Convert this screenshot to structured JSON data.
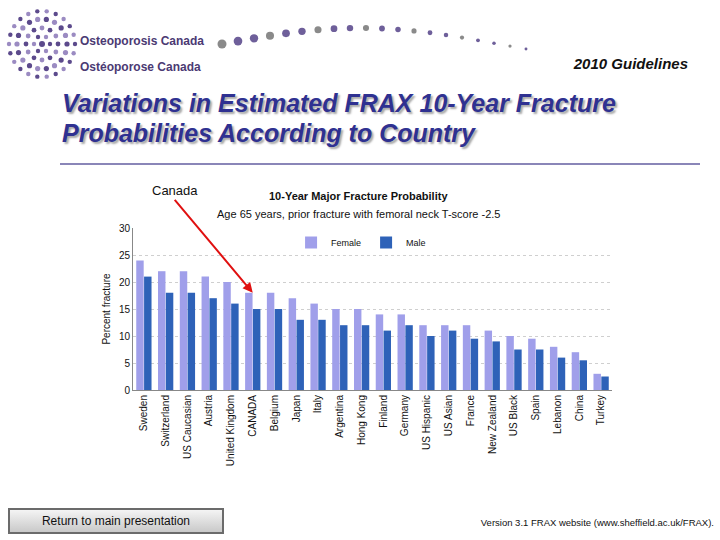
{
  "header": {
    "logo_lines": [
      "Osteoporosis Canada",
      "Ostéoporose Canada"
    ],
    "tag": "2010 Guidelines",
    "title": "Variations in Estimated FRAX 10-Year Fracture Probabilities According to Country"
  },
  "chart_data": {
    "type": "bar",
    "title": "10-Year Major Fracture Probability",
    "subtitle": "Age 65 years, prior fracture with femoral neck T-score -2.5",
    "y_label": "Percent fracture",
    "categories": [
      "Sweden",
      "Switzerland",
      "US Caucasian",
      "Austria",
      "United Kingdom",
      "CANADA",
      "Belgium",
      "Japan",
      "Italy",
      "Argentina",
      "Hong Kong",
      "Finland",
      "Germany",
      "US Hispanic",
      "US Asian",
      "France",
      "New Zealand",
      "US Black",
      "Spain",
      "Lebanon",
      "China",
      "Turkey"
    ],
    "series": [
      {
        "name": "Female",
        "color": "#a09fea",
        "values": [
          24,
          22,
          22,
          21,
          20,
          18,
          18,
          17,
          16,
          15,
          15,
          14,
          14,
          12,
          12,
          12,
          11,
          10,
          9.5,
          8,
          7,
          3
        ]
      },
      {
        "name": "Male",
        "color": "#2e62b8",
        "values": [
          21,
          18,
          18,
          17,
          16,
          15,
          15,
          13,
          13,
          12,
          12,
          11,
          12,
          10,
          11,
          9.5,
          9,
          7.5,
          7.5,
          6,
          5.5,
          2.5
        ]
      }
    ],
    "ylim": [
      0,
      30
    ],
    "yticks": [
      0,
      5,
      10,
      15,
      20,
      25,
      30
    ],
    "grid": true,
    "legend": "top",
    "annotations": [
      {
        "text": "Canada",
        "category": "CANADA"
      }
    ]
  },
  "footer": {
    "button": "Return to main presentation",
    "source": "Version 3.1 FRAX website (www.sheffield.ac.uk/FRAX)."
  }
}
